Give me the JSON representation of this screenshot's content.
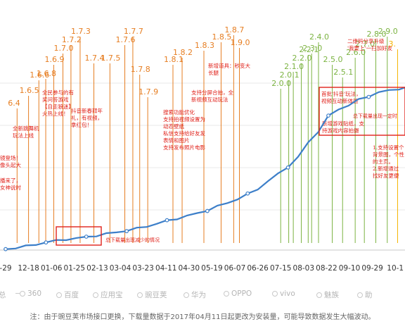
{
  "chart_data": {
    "type": "line",
    "title": "",
    "xlabel": "",
    "ylabel": "",
    "x_ticks": [
      "-29",
      "12-18",
      "01-06",
      "01-25",
      "02-13",
      "03-04",
      "03-23",
      "04-11",
      "04-30",
      "05-19",
      "06-07",
      "06-26",
      "07-15",
      "08-03",
      "08-22",
      "09-10",
      "09-29",
      "10-1"
    ],
    "series": [
      {
        "color": "#3d7fc9",
        "values": [
          0.5,
          1.2,
          2.0,
          3.0,
          4.2,
          5.0,
          5.8,
          6.3,
          7.0,
          7.8,
          8.7,
          9.6,
          10.5,
          11.6,
          12.8,
          14.2,
          15.7,
          17.0,
          18.4,
          19.8,
          21.5,
          23.5,
          25.5,
          27.5,
          30,
          33,
          37,
          41,
          45,
          50,
          58,
          64,
          72,
          76,
          78,
          81,
          83,
          85,
          86,
          87,
          88
        ]
      }
    ],
    "versions": [
      {
        "label": "6.4",
        "color": "#e67e22",
        "tick": 0.5
      },
      {
        "label": "1.6.5",
        "color": "#e67e22",
        "tick": 1.0
      },
      {
        "label": "1.6.6",
        "color": "#e67e22",
        "tick": 1.45
      },
      {
        "label": "1.6.8",
        "color": "#e67e22",
        "tick": 1.75
      },
      {
        "label": "1.6.9",
        "color": "#e67e22",
        "tick": 2.1
      },
      {
        "label": "1.7.0",
        "color": "#e67e22",
        "tick": 2.5
      },
      {
        "label": "1.7.2",
        "color": "#e67e22",
        "tick": 2.85
      },
      {
        "label": "1.7.3",
        "color": "#e67e22",
        "tick": 3.25
      },
      {
        "label": "1.7.4",
        "color": "#e67e22",
        "tick": 3.85
      },
      {
        "label": "1.7.5",
        "color": "#e67e22",
        "tick": 4.55
      },
      {
        "label": "1.7.6",
        "color": "#e67e22",
        "tick": 5.2
      },
      {
        "label": "1.7.7",
        "color": "#e67e22",
        "tick": 5.55
      },
      {
        "label": "1.7.8",
        "color": "#e67e22",
        "tick": 5.85
      },
      {
        "label": "1.7.9",
        "color": "#e67e22",
        "tick": 6.2
      },
      {
        "label": "1.8.1",
        "color": "#e67e22",
        "tick": 7.3
      },
      {
        "label": "1.8.2",
        "color": "#e67e22",
        "tick": 7.7
      },
      {
        "label": "1.8.3",
        "color": "#e67e22",
        "tick": 8.65
      },
      {
        "label": "1.8.5",
        "color": "#e67e22",
        "tick": 9.4
      },
      {
        "label": "1.8.7",
        "color": "#e67e22",
        "tick": 9.95
      },
      {
        "label": "1.9.0",
        "color": "#e67e22",
        "tick": 10.2
      },
      {
        "label": "2.0.0",
        "color": "#7cb342",
        "tick": 12.0
      },
      {
        "label": "2.0.1",
        "color": "#7cb342",
        "tick": 12.35
      },
      {
        "label": "2.1.0",
        "color": "#7cb342",
        "tick": 12.55
      },
      {
        "label": "2.2.0",
        "color": "#7cb342",
        "tick": 12.9
      },
      {
        "label": "2.2.1",
        "color": "#7cb342",
        "tick": 13.2
      },
      {
        "label": "2.3.0",
        "color": "#7cb342",
        "tick": 13.35
      },
      {
        "label": "2.4.0",
        "color": "#7cb342",
        "tick": 13.65
      },
      {
        "label": "2.5.0",
        "color": "#7cb342",
        "tick": 14.25
      },
      {
        "label": "2.5.1",
        "color": "#7cb342",
        "tick": 14.7
      },
      {
        "label": "2.6.0",
        "color": "#7cb342",
        "tick": 15.25
      },
      {
        "label": "2.7.0",
        "color": "#7cb342",
        "tick": 15.65
      },
      {
        "label": "2.8.0",
        "color": "#7cb342",
        "tick": 16.15
      },
      {
        "label": "2.9.0",
        "color": "#7cb342",
        "tick": 16.65
      },
      {
        "label": "3.",
        "color": "#f5b400",
        "tick": 17.1
      }
    ],
    "notes": [
      {
        "lines": [
          "全民参与的有",
          "奖问答游戏",
          "【自走狼迷】",
          "火热上线！"
        ],
        "tick": 1.95
      },
      {
        "lines": [
          "全新跳舞机",
          "玩法上线"
        ],
        "tick": 0.55
      },
      {
        "lines": [
          "镜登场！",
          "像头起大"
        ],
        "tick": 0.2
      },
      {
        "lines": [
          "播来了，",
          "女神说时"
        ],
        "tick": 0.25
      },
      {
        "lines": [
          "抖音新春拜年",
          "礼，有视频，",
          "拿红包！"
        ],
        "tick": 3.2
      },
      {
        "lines": [
          "搜索功能优化",
          "支持拍视频设置为",
          "动态壁纸",
          "私信支持给好友发",
          "表情和图片",
          "支持发布照片电影"
        ],
        "tick": 6.25
      },
      {
        "lines": [
          "支持分屏合拍，全",
          "新视频互动玩法"
        ],
        "tick": 8.05
      },
      {
        "lines": [
          "新增道具：秒变大",
          "长腿"
        ],
        "tick": 8.95
      },
      {
        "lines": [
          "首批'抖音'玩法，",
          "视频互动新体验"
        ],
        "tick": 13.2
      },
      {
        "lines": [
          "新增游戏贴纸，支",
          "持游戏内容拍摄"
        ],
        "tick": 13.9
      },
      {
        "lines": [
          "二维码分享升级",
          "'我要上'一扫加好友"
        ],
        "tick": 16.3
      },
      {
        "lines": [
          "1.支持设置个",
          "背景图，个性",
          "的主页。",
          "2.新增通过",
          "找好友更便"
        ],
        "tick": 16.95
      }
    ],
    "callouts": [
      {
        "text": "总下载量出现减少的情况"
      },
      {
        "text": "总下载量出现一定时"
      }
    ],
    "legend": [
      {
        "label": "360",
        "kind": "dash"
      },
      {
        "label": "百度",
        "kind": "dot"
      },
      {
        "label": "应用宝",
        "kind": "dot"
      },
      {
        "label": "豌豆荚",
        "kind": "dot"
      },
      {
        "label": "华为",
        "kind": "dot"
      },
      {
        "label": "OPPO",
        "kind": "dot"
      },
      {
        "label": "vivo",
        "kind": "dot"
      },
      {
        "label": "魅族",
        "kind": "dot"
      },
      {
        "label": "助",
        "kind": "dot"
      }
    ],
    "legend_prefix": "总",
    "footnote": "注：由于豌豆荚市场接口更换，下载量数据于2017年04月11日起更改为安装量，可能导致数据发生大幅波动。"
  }
}
